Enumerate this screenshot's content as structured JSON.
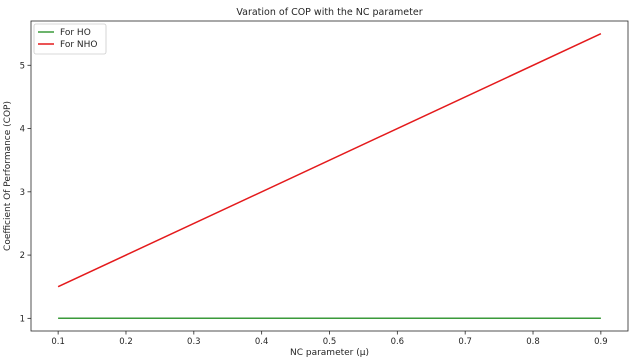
{
  "chart_data": {
    "type": "line",
    "title": "Varation of COP with the NC parameter",
    "xlabel": "NC parameter (μ)",
    "ylabel": "Coefficient Of Performance (COP)",
    "xlim": [
      0.06,
      0.94
    ],
    "ylim": [
      0.8,
      5.7
    ],
    "x_ticks": [
      0.1,
      0.2,
      0.3,
      0.4,
      0.5,
      0.6,
      0.7,
      0.8,
      0.9
    ],
    "y_ticks": [
      1,
      2,
      3,
      4,
      5
    ],
    "grid": false,
    "legend_position": "top-left",
    "series": [
      {
        "name": "For HO",
        "color": "#3a9a3a",
        "x": [
          0.1,
          0.9
        ],
        "y": [
          1.0,
          1.0
        ]
      },
      {
        "name": "For NHO",
        "color": "#e41a1c",
        "x": [
          0.1,
          0.9
        ],
        "y": [
          1.5,
          5.5
        ]
      }
    ]
  }
}
